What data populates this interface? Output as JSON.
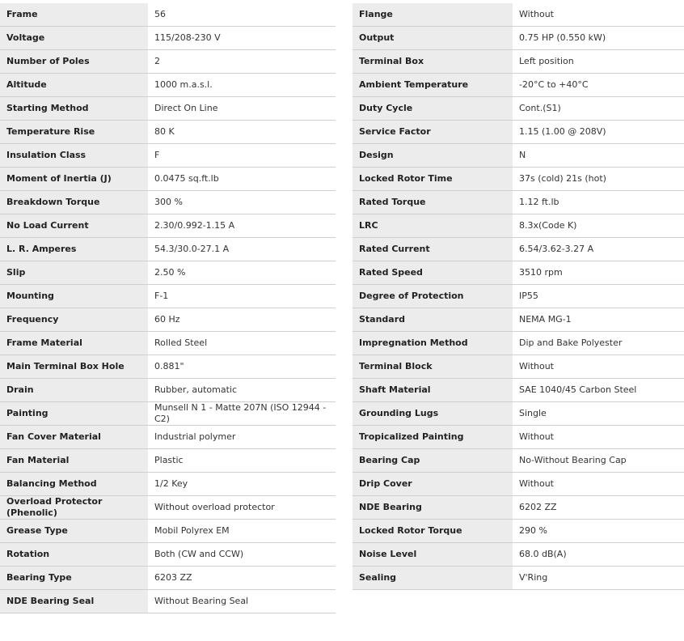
{
  "left_specs": [
    {
      "label": "Frame",
      "value": "56"
    },
    {
      "label": "Voltage",
      "value": "115/208-230 V"
    },
    {
      "label": "Number of Poles",
      "value": "2"
    },
    {
      "label": "Altitude",
      "value": "1000 m.a.s.l."
    },
    {
      "label": "Starting Method",
      "value": "Direct On Line"
    },
    {
      "label": "Temperature Rise",
      "value": "80 K"
    },
    {
      "label": "Insulation Class",
      "value": "F"
    },
    {
      "label": "Moment of Inertia (J)",
      "value": "0.0475 sq.ft.lb"
    },
    {
      "label": "Breakdown Torque",
      "value": "300 %"
    },
    {
      "label": "No Load Current",
      "value": "2.30/0.992-1.15 A"
    },
    {
      "label": "L. R. Amperes",
      "value": "54.3/30.0-27.1 A"
    },
    {
      "label": "Slip",
      "value": "2.50 %"
    },
    {
      "label": "Mounting",
      "value": "F-1"
    },
    {
      "label": "Frequency",
      "value": "60 Hz"
    },
    {
      "label": "Frame Material",
      "value": "Rolled Steel"
    },
    {
      "label": "Main Terminal Box Hole",
      "value": "0.881\""
    },
    {
      "label": "Drain",
      "value": "Rubber, automatic"
    },
    {
      "label": "Painting",
      "value": "Munsell N 1 - Matte 207N (ISO 12944 - C2)"
    },
    {
      "label": "Fan Cover Material",
      "value": "Industrial polymer"
    },
    {
      "label": "Fan Material",
      "value": "Plastic"
    },
    {
      "label": "Balancing Method",
      "value": "1/2 Key"
    },
    {
      "label": "Overload Protector (Phenolic)",
      "value": "Without overload protector"
    },
    {
      "label": "Grease Type",
      "value": "Mobil Polyrex EM"
    },
    {
      "label": "Rotation",
      "value": "Both (CW and CCW)"
    },
    {
      "label": "Bearing Type",
      "value": "6203 ZZ"
    },
    {
      "label": "NDE Bearing Seal",
      "value": "Without Bearing Seal"
    }
  ],
  "right_specs": [
    {
      "label": "Flange",
      "value": "Without"
    },
    {
      "label": "Output",
      "value": "0.75 HP (0.550 kW)"
    },
    {
      "label": "Terminal Box",
      "value": "Left position"
    },
    {
      "label": "Ambient Temperature",
      "value": "-20°C to +40°C"
    },
    {
      "label": "Duty Cycle",
      "value": "Cont.(S1)"
    },
    {
      "label": "Service Factor",
      "value": "1.15 (1.00 @ 208V)"
    },
    {
      "label": "Design",
      "value": "N"
    },
    {
      "label": "Locked Rotor Time",
      "value": "37s (cold) 21s (hot)"
    },
    {
      "label": "Rated Torque",
      "value": "1.12 ft.lb"
    },
    {
      "label": "LRC",
      "value": "8.3x(Code K)"
    },
    {
      "label": "Rated Current",
      "value": "6.54/3.62-3.27 A"
    },
    {
      "label": "Rated Speed",
      "value": "3510 rpm"
    },
    {
      "label": "Degree of Protection",
      "value": "IP55"
    },
    {
      "label": "Standard",
      "value": "NEMA MG-1"
    },
    {
      "label": "Impregnation Method",
      "value": "Dip and Bake Polyester"
    },
    {
      "label": "Terminal Block",
      "value": "Without"
    },
    {
      "label": "Shaft Material",
      "value": "SAE 1040/45 Carbon Steel"
    },
    {
      "label": "Grounding Lugs",
      "value": "Single"
    },
    {
      "label": "Tropicalized Painting",
      "value": "Without"
    },
    {
      "label": "Bearing Cap",
      "value": "No-Without Bearing Cap"
    },
    {
      "label": "Drip Cover",
      "value": "Without"
    },
    {
      "label": "NDE Bearing",
      "value": "6202 ZZ"
    },
    {
      "label": "Locked Rotor Torque",
      "value": "290 %"
    },
    {
      "label": "Noise Level",
      "value": "68.0 dB(A)"
    },
    {
      "label": "Sealing",
      "value": "V'Ring"
    }
  ]
}
